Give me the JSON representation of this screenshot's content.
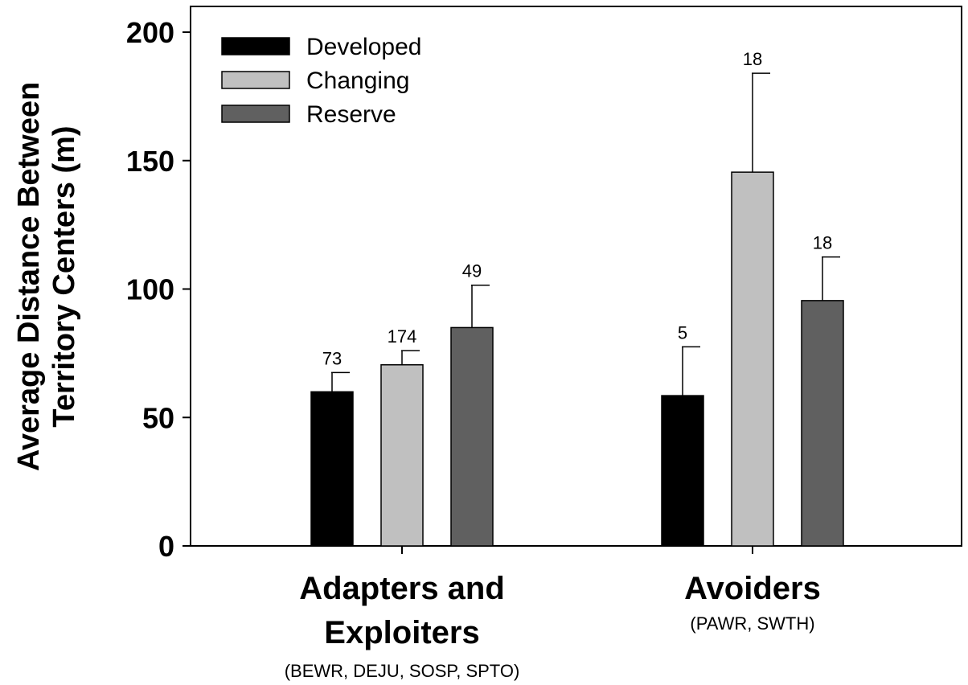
{
  "chart_data": {
    "type": "bar",
    "ylabel": [
      "Average Distance Between",
      "Territory Centers (m)"
    ],
    "ylim": [
      0,
      210
    ],
    "yticks": [
      0,
      50,
      100,
      150,
      200
    ],
    "categories": [
      {
        "label": [
          "Adapters and",
          "Exploiters"
        ],
        "sublabel": "(BEWR, DEJU, SOSP, SPTO)"
      },
      {
        "label": [
          "Avoiders"
        ],
        "sublabel": "(PAWR, SWTH)"
      }
    ],
    "series": [
      {
        "name": "Developed",
        "color": "#000000",
        "values": [
          60,
          58.5
        ],
        "errors": [
          7.5,
          19
        ],
        "n": [
          "73",
          "5"
        ]
      },
      {
        "name": "Changing",
        "color": "#c0c0c0",
        "values": [
          70.5,
          145.5
        ],
        "errors": [
          5.5,
          38.5
        ],
        "n": [
          "174",
          "18"
        ]
      },
      {
        "name": "Reserve",
        "color": "#606060",
        "values": [
          85,
          95.5
        ],
        "errors": [
          16.5,
          17
        ],
        "n": [
          "49",
          "18"
        ]
      }
    ],
    "legend": "top-left",
    "grid": false
  }
}
